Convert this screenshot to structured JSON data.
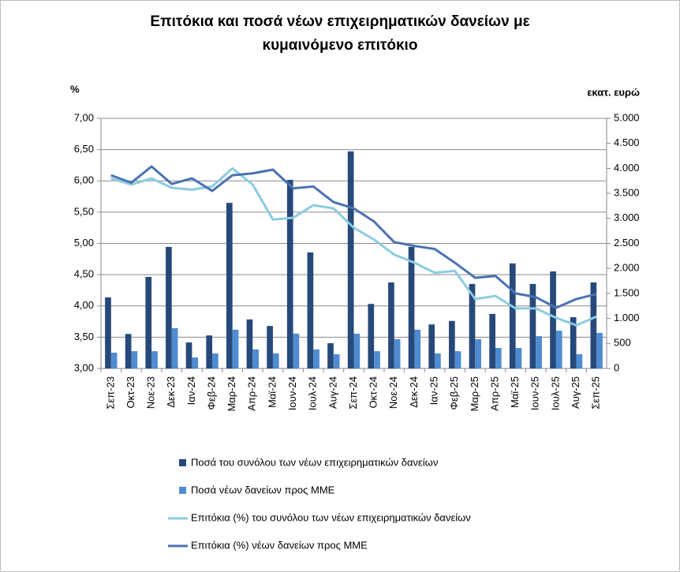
{
  "chart_data": {
    "type": "combo",
    "title": "Επιτόκια και ποσά νέων επιχειρηματικών δανείων με κυμαινόμενο επιτόκιο",
    "y_label": "%",
    "y2_label": "εκατ. ευρώ",
    "categories": [
      "Σεπ-23",
      "Οκτ-23",
      "Νοε-23",
      "Δεκ-23",
      "Ιαν-24",
      "Φεβ-24",
      "Μαρ-24",
      "Απρ-24",
      "Μαϊ-24",
      "Ιουν-24",
      "Ιουλ-24",
      "Αυγ-24",
      "Σεπ-24",
      "Οκτ-24",
      "Νοε-24",
      "Δεκ-24",
      "Ιαν-25",
      "Φεβ-25",
      "Μαρ-25",
      "Απρ-25",
      "Μαϊ-25",
      "Ιουν-25",
      "Ιουλ-25",
      "Αυγ-25",
      "Σεπ-25"
    ],
    "series": [
      {
        "name": "Ποσά του συνόλου των νέων επιχειρηματικών δανείων",
        "type": "bar",
        "axis": "y2",
        "color": "#27497a",
        "values": [
          1420,
          690,
          1830,
          2430,
          520,
          660,
          3310,
          980,
          850,
          3770,
          2320,
          505,
          4340,
          1290,
          1720,
          2430,
          880,
          950,
          1690,
          1090,
          2100,
          1690,
          1940,
          1025,
          1720
        ]
      },
      {
        "name": "Ποσά νέων δανείων προς ΜΜΕ",
        "type": "bar",
        "axis": "y2",
        "color": "#4f8bd0",
        "values": [
          315,
          345,
          345,
          805,
          220,
          300,
          775,
          380,
          300,
          695,
          380,
          285,
          695,
          345,
          585,
          775,
          300,
          345,
          585,
          410,
          410,
          645,
          755,
          285,
          710
        ]
      },
      {
        "name": "Επιτόκια (%) του συνόλου των νέων επιχειρηματικών δανείων",
        "type": "line",
        "color": "#8ccbe0",
        "values": [
          6.04,
          5.94,
          6.04,
          5.89,
          5.86,
          5.91,
          6.2,
          5.94,
          5.38,
          5.41,
          5.61,
          5.56,
          5.25,
          5.06,
          4.82,
          4.69,
          4.53,
          4.56,
          4.11,
          4.16,
          3.96,
          3.96,
          3.81,
          3.69,
          3.83
        ]
      },
      {
        "name": "Επιτόκια (%) νέων δανείων προς ΜΜΕ",
        "type": "line",
        "color": "#4a72b2",
        "values": [
          6.09,
          5.97,
          6.23,
          5.95,
          6.04,
          5.84,
          6.09,
          6.12,
          6.18,
          5.88,
          5.91,
          5.66,
          5.56,
          5.35,
          5.02,
          4.96,
          4.91,
          4.69,
          4.45,
          4.48,
          4.2,
          4.14,
          3.97,
          4.11,
          4.19
        ]
      }
    ],
    "ylim": [
      3,
      7
    ],
    "yticks": [
      {
        "value": 3,
        "label": "3,00"
      },
      {
        "value": 3.5,
        "label": "3,50"
      },
      {
        "value": 4,
        "label": "4,00"
      },
      {
        "value": 4.5,
        "label": "4,50"
      },
      {
        "value": 5,
        "label": "5,00"
      },
      {
        "value": 5.5,
        "label": "5,50"
      },
      {
        "value": 6,
        "label": "6,00"
      },
      {
        "value": 6.5,
        "label": "6,50"
      },
      {
        "value": 7,
        "label": "7,00"
      }
    ],
    "y2lim": [
      0,
      5000
    ],
    "y2ticks": [
      0,
      500,
      {
        "value": 1000,
        "label": "1.000"
      },
      {
        "value": 1500,
        "label": "1.500"
      },
      {
        "value": 2000,
        "label": "2.000"
      },
      {
        "value": 2500,
        "label": "2.500"
      },
      {
        "value": 3000,
        "label": "3.000"
      },
      {
        "value": 3500,
        "label": "3.500"
      },
      {
        "value": 4000,
        "label": "4.000"
      },
      {
        "value": 4500,
        "label": "4.500"
      },
      {
        "value": 5000,
        "label": "5.000"
      }
    ],
    "grid": true,
    "legend": "bottom"
  }
}
